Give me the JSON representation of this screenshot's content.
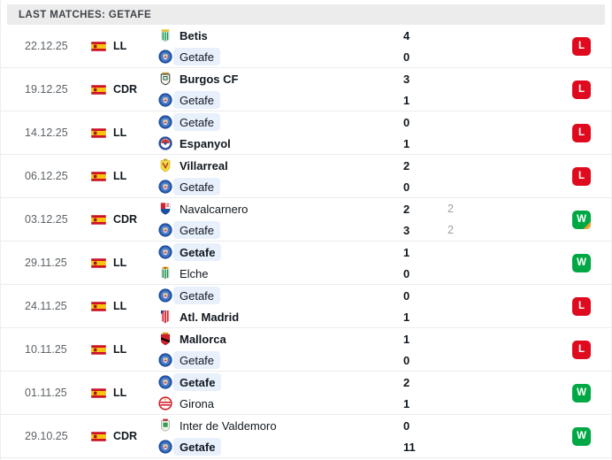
{
  "header": {
    "title": "LAST MATCHES: GETAFE"
  },
  "colors": {
    "win": "#00a845",
    "loss": "#e00a1e",
    "overtime_corner": "#f0a12e",
    "getafe_highlight": "#e8f0fc",
    "header_bg": "#ececec"
  },
  "rows": [
    {
      "date": "22.12.25",
      "competition": "LL",
      "flag": "spain-flag",
      "home": {
        "name": "Betis",
        "logo": "betis",
        "score": "4",
        "score2": "",
        "bold": true,
        "highlight": false
      },
      "away": {
        "name": "Getafe",
        "logo": "getafe",
        "score": "0",
        "score2": "",
        "bold": false,
        "highlight": true
      },
      "result": "L",
      "overtime": false
    },
    {
      "date": "19.12.25",
      "competition": "CDR",
      "flag": "spain-flag",
      "home": {
        "name": "Burgos CF",
        "logo": "burgos",
        "score": "3",
        "score2": "",
        "bold": true,
        "highlight": false
      },
      "away": {
        "name": "Getafe",
        "logo": "getafe",
        "score": "1",
        "score2": "",
        "bold": false,
        "highlight": true
      },
      "result": "L",
      "overtime": false
    },
    {
      "date": "14.12.25",
      "competition": "LL",
      "flag": "spain-flag",
      "home": {
        "name": "Getafe",
        "logo": "getafe",
        "score": "0",
        "score2": "",
        "bold": false,
        "highlight": true
      },
      "away": {
        "name": "Espanyol",
        "logo": "espanyol",
        "score": "1",
        "score2": "",
        "bold": true,
        "highlight": false
      },
      "result": "L",
      "overtime": false
    },
    {
      "date": "06.12.25",
      "competition": "LL",
      "flag": "spain-flag",
      "home": {
        "name": "Villarreal",
        "logo": "villarreal",
        "score": "2",
        "score2": "",
        "bold": true,
        "highlight": false
      },
      "away": {
        "name": "Getafe",
        "logo": "getafe",
        "score": "0",
        "score2": "",
        "bold": false,
        "highlight": true
      },
      "result": "L",
      "overtime": false
    },
    {
      "date": "03.12.25",
      "competition": "CDR",
      "flag": "spain-flag",
      "home": {
        "name": "Navalcarnero",
        "logo": "navalcarnero",
        "score": "2",
        "score2": "2",
        "bold": false,
        "highlight": false
      },
      "away": {
        "name": "Getafe",
        "logo": "getafe",
        "score": "3",
        "score2": "2",
        "bold": false,
        "highlight": true
      },
      "result": "W",
      "overtime": true
    },
    {
      "date": "29.11.25",
      "competition": "LL",
      "flag": "spain-flag",
      "home": {
        "name": "Getafe",
        "logo": "getafe",
        "score": "1",
        "score2": "",
        "bold": true,
        "highlight": true
      },
      "away": {
        "name": "Elche",
        "logo": "elche",
        "score": "0",
        "score2": "",
        "bold": false,
        "highlight": false
      },
      "result": "W",
      "overtime": false
    },
    {
      "date": "24.11.25",
      "competition": "LL",
      "flag": "spain-flag",
      "home": {
        "name": "Getafe",
        "logo": "getafe",
        "score": "0",
        "score2": "",
        "bold": false,
        "highlight": true
      },
      "away": {
        "name": "Atl. Madrid",
        "logo": "atletico",
        "score": "1",
        "score2": "",
        "bold": true,
        "highlight": false
      },
      "result": "L",
      "overtime": false
    },
    {
      "date": "10.11.25",
      "competition": "LL",
      "flag": "spain-flag",
      "home": {
        "name": "Mallorca",
        "logo": "mallorca",
        "score": "1",
        "score2": "",
        "bold": true,
        "highlight": false
      },
      "away": {
        "name": "Getafe",
        "logo": "getafe",
        "score": "0",
        "score2": "",
        "bold": false,
        "highlight": true
      },
      "result": "L",
      "overtime": false
    },
    {
      "date": "01.11.25",
      "competition": "LL",
      "flag": "spain-flag",
      "home": {
        "name": "Getafe",
        "logo": "getafe",
        "score": "2",
        "score2": "",
        "bold": true,
        "highlight": true
      },
      "away": {
        "name": "Girona",
        "logo": "girona",
        "score": "1",
        "score2": "",
        "bold": false,
        "highlight": false
      },
      "result": "W",
      "overtime": false
    },
    {
      "date": "29.10.25",
      "competition": "CDR",
      "flag": "spain-flag",
      "home": {
        "name": "Inter de Valdemoro",
        "logo": "intervaldemoro",
        "score": "0",
        "score2": "",
        "bold": false,
        "highlight": false
      },
      "away": {
        "name": "Getafe",
        "logo": "getafe",
        "score": "11",
        "score2": "",
        "bold": true,
        "highlight": true
      },
      "result": "W",
      "overtime": false
    }
  ]
}
